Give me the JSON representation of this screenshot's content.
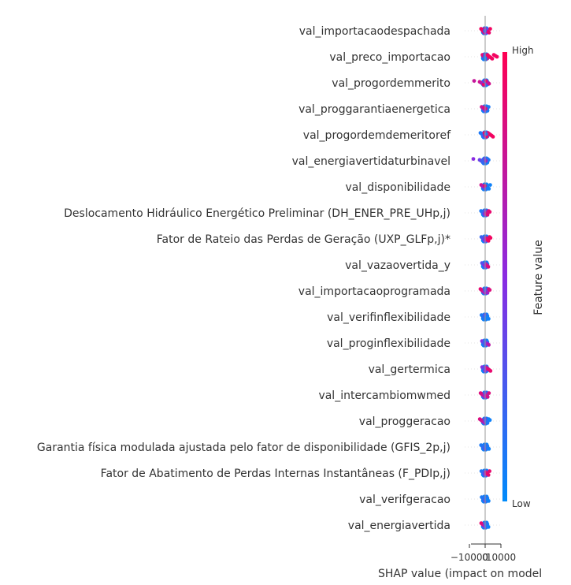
{
  "chart_data": {
    "type": "scatter",
    "title": "",
    "xlabel": "SHAP value (impact on model",
    "x_ticks": [
      "−10000",
      "0",
      "10000"
    ],
    "xlim": [
      -15000,
      15000
    ],
    "colorbar": {
      "title": "Feature value",
      "high_label": "High",
      "low_label": "Low",
      "high_color": "#ff0052",
      "low_color": "#008bfb"
    },
    "legend_placement": "right",
    "grid": false,
    "features": [
      {
        "name": "val_importacaodespachada",
        "points": [
          [
            -2600,
            0.95
          ],
          [
            -2000,
            0.95
          ],
          [
            -1500,
            0.9
          ],
          [
            -1000,
            0.9
          ],
          [
            -600,
            0.85
          ],
          [
            -300,
            0.8
          ],
          [
            0,
            0.8
          ],
          [
            0,
            0.3
          ],
          [
            0,
            0.1
          ],
          [
            300,
            0.5
          ],
          [
            600,
            0.4
          ],
          [
            800,
            0.1
          ],
          [
            1200,
            0.3
          ],
          [
            1800,
            0.85
          ],
          [
            2500,
            0.9
          ],
          [
            3200,
            0.95
          ],
          [
            0,
            0.6
          ],
          [
            -200,
            0.2
          ]
        ]
      },
      {
        "name": "val_preco_importacao",
        "points": [
          [
            -1700,
            0.9
          ],
          [
            -1200,
            0.85
          ],
          [
            -800,
            0.8
          ],
          [
            -400,
            0.7
          ],
          [
            0,
            0.6
          ],
          [
            0,
            0.3
          ],
          [
            0,
            0.1
          ],
          [
            300,
            0.2
          ],
          [
            600,
            0.5
          ],
          [
            1000,
            0.9
          ],
          [
            1500,
            0.9
          ],
          [
            2000,
            0.95
          ],
          [
            2800,
            0.95
          ],
          [
            3600,
            0.95
          ],
          [
            4500,
            0.95
          ],
          [
            5500,
            0.95
          ],
          [
            6500,
            0.95
          ],
          [
            7500,
            0.95
          ],
          [
            -300,
            0.1
          ],
          [
            200,
            0.05
          ]
        ]
      },
      {
        "name": "val_progordemmerito",
        "points": [
          [
            -7000,
            0.75
          ],
          [
            -3500,
            0.8
          ],
          [
            -2500,
            0.7
          ],
          [
            -1500,
            0.6
          ],
          [
            -800,
            0.5
          ],
          [
            -300,
            0.4
          ],
          [
            0,
            0.3
          ],
          [
            0,
            0.15
          ],
          [
            0,
            0.05
          ],
          [
            300,
            0.2
          ],
          [
            600,
            0.4
          ],
          [
            1200,
            0.5
          ],
          [
            1800,
            0.6
          ],
          [
            2500,
            0.8
          ],
          [
            -1000,
            0.9
          ],
          [
            500,
            0.9
          ]
        ]
      },
      {
        "name": "val_proggarantiaenergetica",
        "points": [
          [
            -2200,
            0.8
          ],
          [
            -1500,
            0.7
          ],
          [
            -1000,
            0.6
          ],
          [
            -400,
            0.5
          ],
          [
            0,
            0.5
          ],
          [
            0,
            0.2
          ],
          [
            0,
            0.05
          ],
          [
            400,
            0.3
          ],
          [
            900,
            0.2
          ],
          [
            1500,
            0.1
          ],
          [
            2200,
            0.1
          ],
          [
            -700,
            0.9
          ],
          [
            300,
            0.8
          ]
        ]
      },
      {
        "name": "val_progordemdemeritoref",
        "points": [
          [
            -3000,
            0.1
          ],
          [
            -2200,
            0.1
          ],
          [
            -1500,
            0.15
          ],
          [
            -900,
            0.2
          ],
          [
            -400,
            0.3
          ],
          [
            0,
            0.4
          ],
          [
            0,
            0.1
          ],
          [
            0,
            0.8
          ],
          [
            400,
            0.8
          ],
          [
            1000,
            0.9
          ],
          [
            1800,
            0.9
          ],
          [
            2600,
            0.9
          ],
          [
            3400,
            0.95
          ],
          [
            4200,
            0.95
          ],
          [
            5000,
            0.95
          ],
          [
            -500,
            0.9
          ],
          [
            600,
            0.1
          ]
        ]
      },
      {
        "name": "val_energiavertidaturbinavel",
        "points": [
          [
            -7500,
            0.5
          ],
          [
            -3500,
            0.4
          ],
          [
            -2500,
            0.3
          ],
          [
            -1500,
            0.2
          ],
          [
            -700,
            0.2
          ],
          [
            -300,
            0.5
          ],
          [
            0,
            0.3
          ],
          [
            0,
            0.1
          ],
          [
            300,
            0.2
          ],
          [
            700,
            0.1
          ],
          [
            1500,
            0.15
          ],
          [
            2200,
            0.1
          ],
          [
            400,
            0.6
          ]
        ]
      },
      {
        "name": "val_disponibilidade",
        "points": [
          [
            -2500,
            0.8
          ],
          [
            -1800,
            0.7
          ],
          [
            -1100,
            0.6
          ],
          [
            -500,
            0.5
          ],
          [
            0,
            0.3
          ],
          [
            0,
            0.1
          ],
          [
            400,
            0.1
          ],
          [
            900,
            0.15
          ],
          [
            1600,
            0.1
          ],
          [
            2400,
            0.05
          ],
          [
            3200,
            0.05
          ],
          [
            -300,
            0.9
          ]
        ]
      },
      {
        "name": "Deslocamento Hidráulico Energético Preliminar (DH_ENER_PRE_UHp,j)",
        "points": [
          [
            -2600,
            0.1
          ],
          [
            -2000,
            0.1
          ],
          [
            -1300,
            0.2
          ],
          [
            -700,
            0.3
          ],
          [
            -200,
            0.5
          ],
          [
            0,
            0.6
          ],
          [
            0,
            0.2
          ],
          [
            300,
            0.7
          ],
          [
            800,
            0.8
          ],
          [
            1500,
            0.85
          ],
          [
            2200,
            0.85
          ],
          [
            2900,
            0.9
          ]
        ]
      },
      {
        "name": "Fator de Rateio das Perdas de Geração (UXP_GLFp,j)*",
        "points": [
          [
            -2400,
            0.2
          ],
          [
            -1700,
            0.25
          ],
          [
            -1100,
            0.3
          ],
          [
            -500,
            0.4
          ],
          [
            0,
            0.5
          ],
          [
            0,
            0.2
          ],
          [
            400,
            0.7
          ],
          [
            900,
            0.85
          ],
          [
            1500,
            0.9
          ],
          [
            2100,
            0.95
          ],
          [
            2800,
            0.95
          ],
          [
            3400,
            0.95
          ]
        ]
      },
      {
        "name": "val_vazaovertida_y",
        "points": [
          [
            -2000,
            0.3
          ],
          [
            -1300,
            0.3
          ],
          [
            -700,
            0.4
          ],
          [
            -300,
            0.5
          ],
          [
            0,
            0.4
          ],
          [
            0,
            0.1
          ],
          [
            400,
            0.6
          ],
          [
            900,
            0.7
          ],
          [
            1500,
            0.8
          ],
          [
            2000,
            0.85
          ]
        ]
      },
      {
        "name": "val_importacaoprogramada",
        "points": [
          [
            -3000,
            0.9
          ],
          [
            -2300,
            0.85
          ],
          [
            -1600,
            0.8
          ],
          [
            -900,
            0.7
          ],
          [
            -300,
            0.6
          ],
          [
            0,
            0.3
          ],
          [
            0,
            0.1
          ],
          [
            400,
            0.2
          ],
          [
            900,
            0.4
          ],
          [
            1500,
            0.6
          ],
          [
            2200,
            0.8
          ],
          [
            2900,
            0.85
          ]
        ]
      },
      {
        "name": "val_verifinflexibilidade",
        "points": [
          [
            -2300,
            0.1
          ],
          [
            -1600,
            0.1
          ],
          [
            -900,
            0.15
          ],
          [
            -300,
            0.2
          ],
          [
            0,
            0.1
          ],
          [
            0,
            0.4
          ],
          [
            400,
            0.2
          ],
          [
            900,
            0.1
          ],
          [
            1500,
            0.05
          ],
          [
            2200,
            0.05
          ]
        ]
      },
      {
        "name": "val_proginflexibilidade",
        "points": [
          [
            -2000,
            0.5
          ],
          [
            -1300,
            0.4
          ],
          [
            -700,
            0.3
          ],
          [
            -200,
            0.2
          ],
          [
            0,
            0.3
          ],
          [
            0,
            0.1
          ],
          [
            400,
            0.2
          ],
          [
            900,
            0.4
          ],
          [
            1600,
            0.6
          ],
          [
            2300,
            0.7
          ]
        ]
      },
      {
        "name": "val_gertermica",
        "points": [
          [
            -1900,
            0.5
          ],
          [
            -1200,
            0.4
          ],
          [
            -600,
            0.3
          ],
          [
            0,
            0.2
          ],
          [
            0,
            0.5
          ],
          [
            500,
            0.6
          ],
          [
            1100,
            0.7
          ],
          [
            1800,
            0.85
          ],
          [
            2600,
            0.9
          ],
          [
            3400,
            0.9
          ]
        ]
      },
      {
        "name": "val_intercambiomwmed",
        "points": [
          [
            -2900,
            0.85
          ],
          [
            -2200,
            0.85
          ],
          [
            -1500,
            0.8
          ],
          [
            -800,
            0.7
          ],
          [
            -300,
            0.6
          ],
          [
            0,
            0.4
          ],
          [
            0,
            0.2
          ],
          [
            400,
            0.6
          ],
          [
            900,
            0.75
          ],
          [
            1600,
            0.8
          ],
          [
            2400,
            0.85
          ]
        ]
      },
      {
        "name": "val_proggeracao",
        "points": [
          [
            -3400,
            0.85
          ],
          [
            -2600,
            0.8
          ],
          [
            -1800,
            0.75
          ],
          [
            -1000,
            0.7
          ],
          [
            -400,
            0.6
          ],
          [
            0,
            0.5
          ],
          [
            0,
            0.2
          ],
          [
            400,
            0.3
          ],
          [
            900,
            0.2
          ],
          [
            1500,
            0.1
          ],
          [
            2200,
            0.05
          ],
          [
            3000,
            0.05
          ]
        ]
      },
      {
        "name": "Garantia física modulada ajustada pelo fator de disponibilidade (GFIS_2p,j)",
        "points": [
          [
            -2600,
            0.1
          ],
          [
            -1900,
            0.1
          ],
          [
            -1200,
            0.15
          ],
          [
            -600,
            0.2
          ],
          [
            0,
            0.3
          ],
          [
            0,
            0.1
          ],
          [
            400,
            0.2
          ],
          [
            1000,
            0.15
          ],
          [
            1700,
            0.1
          ],
          [
            2400,
            0.05
          ]
        ]
      },
      {
        "name": "Fator de Abatimento de Perdas Internas Instantâneas (F_PDIp,j)",
        "points": [
          [
            -2400,
            0.1
          ],
          [
            -1700,
            0.15
          ],
          [
            -1000,
            0.2
          ],
          [
            -400,
            0.3
          ],
          [
            0,
            0.5
          ],
          [
            0,
            0.2
          ],
          [
            400,
            0.7
          ],
          [
            900,
            0.85
          ],
          [
            1500,
            0.9
          ],
          [
            2100,
            0.9
          ],
          [
            2800,
            0.9
          ]
        ]
      },
      {
        "name": "val_verifgeracao",
        "points": [
          [
            -2200,
            0.1
          ],
          [
            -1500,
            0.1
          ],
          [
            -800,
            0.15
          ],
          [
            -300,
            0.2
          ],
          [
            0,
            0.3
          ],
          [
            0,
            0.1
          ],
          [
            400,
            0.2
          ],
          [
            900,
            0.1
          ],
          [
            1500,
            0.05
          ],
          [
            2200,
            0.05
          ]
        ]
      },
      {
        "name": "val_energiavertida",
        "points": [
          [
            -2500,
            0.9
          ],
          [
            -1800,
            0.85
          ],
          [
            -1100,
            0.8
          ],
          [
            -500,
            0.6
          ],
          [
            0,
            0.4
          ],
          [
            0,
            0.15
          ],
          [
            400,
            0.2
          ],
          [
            900,
            0.15
          ],
          [
            1500,
            0.1
          ],
          [
            2100,
            0.05
          ]
        ]
      }
    ]
  }
}
